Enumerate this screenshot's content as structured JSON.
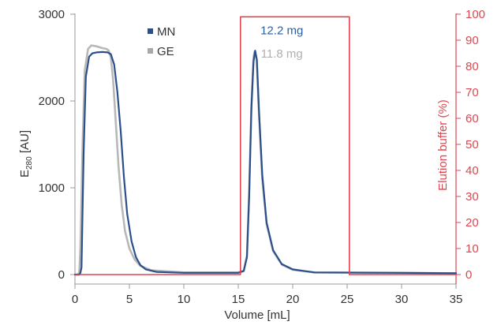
{
  "chart_data": {
    "type": "line",
    "xlabel": "Volume [mL]",
    "ylabel_main": "E",
    "ylabel_sub": "280",
    "ylabel_unit": " [AU]",
    "y2label": "Elution buffer (%)",
    "xlim": [
      0,
      35
    ],
    "ylim": [
      0,
      3000
    ],
    "y2lim": [
      0,
      100
    ],
    "xticks": [
      0,
      5,
      10,
      15,
      20,
      25,
      30,
      35
    ],
    "yticks": [
      0,
      1000,
      2000,
      3000
    ],
    "y2ticks": [
      0,
      10,
      20,
      30,
      40,
      50,
      60,
      70,
      80,
      90,
      100
    ],
    "legend_position": "top-center",
    "series": [
      {
        "name": "MN",
        "axis": "left",
        "color": "#2b4f8a",
        "x": [
          0,
          0.4,
          0.5,
          0.6,
          0.8,
          1.0,
          1.3,
          1.6,
          2.0,
          2.5,
          3.0,
          3.3,
          3.6,
          3.9,
          4.2,
          4.5,
          4.8,
          5.2,
          5.6,
          6.0,
          6.5,
          7.5,
          10,
          15,
          15.5,
          15.8,
          16.0,
          16.2,
          16.4,
          16.55,
          16.7,
          16.9,
          17.2,
          17.6,
          18.2,
          19,
          20,
          22,
          30,
          35
        ],
        "values": [
          0,
          0,
          20,
          80,
          1400,
          2280,
          2510,
          2550,
          2560,
          2565,
          2560,
          2540,
          2420,
          2100,
          1650,
          1120,
          700,
          380,
          200,
          110,
          60,
          30,
          20,
          20,
          40,
          200,
          900,
          1900,
          2450,
          2580,
          2480,
          1900,
          1150,
          600,
          280,
          120,
          60,
          25,
          20,
          15
        ]
      },
      {
        "name": "GE",
        "axis": "left",
        "color": "#b8b8b8",
        "x": [
          0,
          0.3,
          0.4,
          0.5,
          0.7,
          0.9,
          1.2,
          1.5,
          2.0,
          2.5,
          2.9,
          3.1,
          3.3,
          3.5,
          3.7,
          4.0,
          4.3,
          4.6,
          5.0,
          5.5,
          6.0,
          7.0,
          10,
          15,
          15.5,
          15.8,
          16.0,
          16.2,
          16.4,
          16.5,
          16.7,
          16.9,
          17.2,
          17.6,
          18.2,
          19,
          20,
          22,
          30,
          35
        ],
        "values": [
          0,
          0,
          30,
          300,
          1500,
          2350,
          2600,
          2640,
          2630,
          2610,
          2600,
          2580,
          2500,
          2250,
          1850,
          1250,
          800,
          500,
          300,
          170,
          100,
          50,
          25,
          25,
          45,
          220,
          950,
          1950,
          2500,
          2570,
          2470,
          1850,
          1100,
          580,
          270,
          115,
          55,
          25,
          20,
          15
        ]
      },
      {
        "name": "Elution buffer",
        "axis": "right",
        "color": "#e0454f",
        "x": [
          0,
          15.2,
          15.2,
          25.2,
          25.2,
          35
        ],
        "values": [
          0,
          0,
          99,
          99,
          0,
          0
        ]
      }
    ],
    "legend": [
      {
        "label": "MN",
        "color": "#2b4f8a"
      },
      {
        "label": "GE",
        "color": "#a8a8a8"
      }
    ],
    "annotations": [
      {
        "text": "12.2 mg",
        "color": "#2b5fa0",
        "x": 19,
        "y": 2770
      },
      {
        "text": "11.8 mg",
        "color": "#b0b0b0",
        "x": 19,
        "y": 2500
      }
    ]
  }
}
